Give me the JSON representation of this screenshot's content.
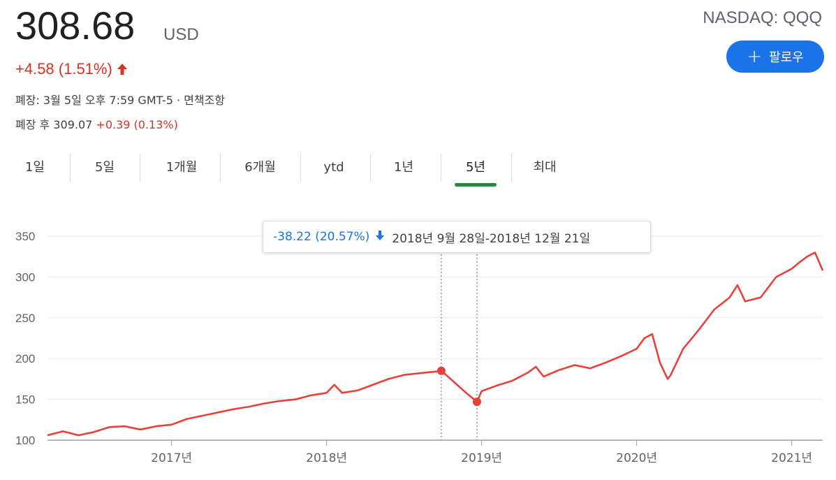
{
  "quote": {
    "price": "308.68",
    "currency": "USD",
    "change": "+4.58 (1.51%)",
    "ticker": "NASDAQ: QQQ",
    "follow_label": "팔로우",
    "close_text": "폐장: 3월 5일 오후 7:59 GMT-5 · 면책조항",
    "after_label": "폐장 후 309.07",
    "after_change": "+0.39 (0.13%)"
  },
  "tabs": [
    {
      "label": "1일"
    },
    {
      "label": "5일"
    },
    {
      "label": "1개월"
    },
    {
      "label": "6개월"
    },
    {
      "label": "ytd"
    },
    {
      "label": "1년"
    },
    {
      "label": "5년",
      "active": true
    },
    {
      "label": "최대"
    }
  ],
  "tooltip": {
    "change": "-38.22 (20.57%)",
    "range": "2018년 9월 28일-2018년 12월 21일"
  },
  "colors": {
    "line": "#e8403a",
    "up": "#d93025",
    "accent": "#1a73e8",
    "tab_active": "#1e8e3e"
  },
  "chart_data": {
    "type": "line",
    "ylim": [
      100,
      350
    ],
    "yticks": [
      100,
      150,
      200,
      250,
      300,
      350
    ],
    "xlim": [
      2016.2,
      2021.2
    ],
    "xticks": [
      {
        "label": "2017년",
        "value": 2017.0
      },
      {
        "label": "2018년",
        "value": 2018.0
      },
      {
        "label": "2019년",
        "value": 2019.0
      },
      {
        "label": "2020년",
        "value": 2020.0
      },
      {
        "label": "2021년",
        "value": 2021.0
      }
    ],
    "grid": true,
    "markers": [
      {
        "x": 2018.74,
        "y": 185
      },
      {
        "x": 2018.97,
        "y": 147
      }
    ],
    "x": [
      2016.2,
      2016.3,
      2016.4,
      2016.5,
      2016.6,
      2016.7,
      2016.8,
      2016.9,
      2017.0,
      2017.1,
      2017.2,
      2017.3,
      2017.4,
      2017.5,
      2017.6,
      2017.7,
      2017.8,
      2017.9,
      2018.0,
      2018.05,
      2018.1,
      2018.2,
      2018.3,
      2018.4,
      2018.5,
      2018.6,
      2018.7,
      2018.74,
      2018.8,
      2018.9,
      2018.97,
      2019.0,
      2019.1,
      2019.2,
      2019.3,
      2019.35,
      2019.4,
      2019.5,
      2019.6,
      2019.7,
      2019.8,
      2019.9,
      2020.0,
      2020.05,
      2020.1,
      2020.15,
      2020.2,
      2020.22,
      2020.3,
      2020.4,
      2020.5,
      2020.6,
      2020.65,
      2020.7,
      2020.8,
      2020.9,
      2021.0,
      2021.05,
      2021.1,
      2021.15,
      2021.2
    ],
    "y": [
      106,
      111,
      106,
      110,
      116,
      117,
      113,
      117,
      119,
      126,
      130,
      134,
      138,
      141,
      145,
      148,
      150,
      155,
      158,
      168,
      158,
      161,
      168,
      175,
      180,
      182,
      184,
      185,
      175,
      158,
      147,
      160,
      167,
      173,
      183,
      190,
      178,
      186,
      192,
      188,
      195,
      203,
      212,
      225,
      230,
      195,
      175,
      180,
      212,
      235,
      260,
      275,
      290,
      270,
      275,
      300,
      310,
      318,
      325,
      330,
      308
    ]
  }
}
